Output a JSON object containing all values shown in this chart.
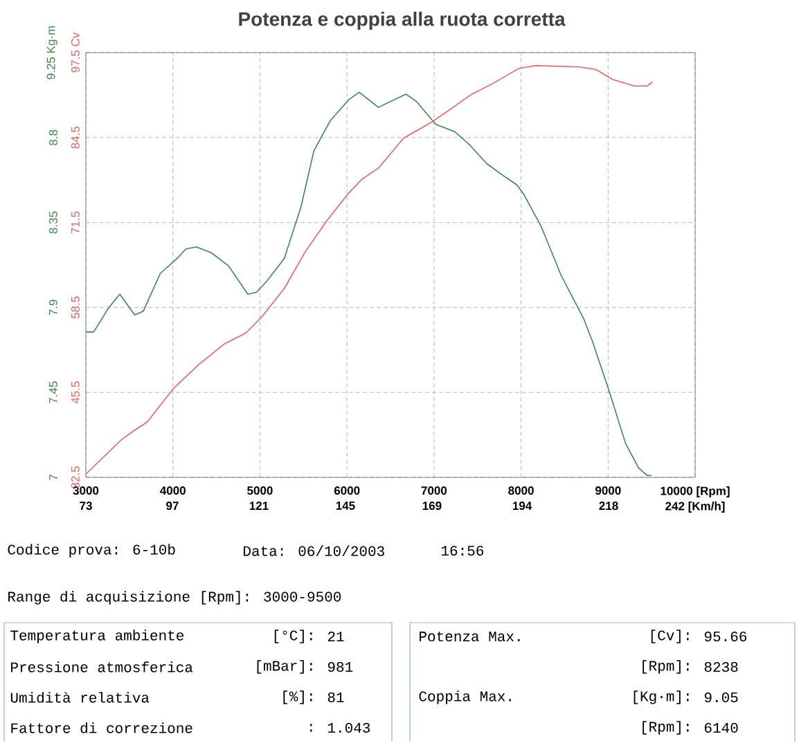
{
  "chart_data": {
    "type": "line",
    "title": "Potenza e coppia alla ruota corretta",
    "xlim": [
      3000,
      10000
    ],
    "xticks": [
      3000,
      4000,
      5000,
      6000,
      7000,
      8000,
      9000,
      {
        "value": 10000,
        "label": "10000 [Rpm]"
      }
    ],
    "x2lim": [
      73,
      242
    ],
    "x2ticks": [
      73,
      97,
      121,
      145,
      169,
      194,
      218,
      {
        "value": 242,
        "label": "242 [Km/h]"
      }
    ],
    "ylim": [
      7,
      9.25
    ],
    "yticks": [
      7,
      7.45,
      7.9,
      8.35,
      8.8,
      {
        "value": 9.25,
        "label": "9.25 Kg·m"
      }
    ],
    "y2lim": [
      32.5,
      97.5
    ],
    "y2ticks": [
      32.5,
      45.5,
      58.5,
      71.5,
      84.5,
      {
        "value": 97.5,
        "label": "97.5 Cv"
      }
    ],
    "grid": true,
    "series": [
      {
        "color": "#3a8a4a",
        "x": [
          3000,
          3090,
          3265,
          3390,
          3560,
          3660,
          3855,
          4050,
          4150,
          4270,
          4440,
          4640,
          4860,
          4960,
          5080,
          5280,
          5470,
          5620,
          5810,
          6020,
          6140,
          6360,
          6680,
          6800,
          7020,
          7240,
          7390,
          7610,
          7790,
          7950,
          8030,
          8230,
          8460,
          8720,
          8820,
          9010,
          9200,
          9350,
          9450,
          9500
        ],
        "values": [
          7.77,
          7.77,
          7.9,
          7.97,
          7.86,
          7.88,
          8.08,
          8.16,
          8.21,
          8.22,
          8.19,
          8.12,
          7.97,
          7.98,
          8.04,
          8.16,
          8.43,
          8.73,
          8.89,
          9.0,
          9.04,
          8.96,
          9.03,
          8.99,
          8.87,
          8.83,
          8.77,
          8.66,
          8.6,
          8.55,
          8.5,
          8.33,
          8.07,
          7.84,
          7.72,
          7.46,
          7.18,
          7.05,
          7.01,
          7.01
        ]
      },
      {
        "color": "#f06060",
        "axis": "y2",
        "x": [
          3000,
          3412,
          3560,
          3707,
          4000,
          4300,
          4590,
          4840,
          5030,
          5280,
          5520,
          5770,
          6020,
          6170,
          6360,
          6650,
          6990,
          7240,
          7430,
          7680,
          7980,
          8170,
          8670,
          8860,
          9050,
          9300,
          9450,
          9510
        ],
        "values": [
          33.0,
          38.3,
          39.7,
          41.0,
          46.0,
          49.8,
          52.9,
          54.6,
          57.2,
          61.4,
          67.0,
          71.8,
          76.0,
          78.1,
          79.8,
          84.4,
          87.0,
          89.3,
          91.1,
          92.8,
          95.1,
          95.5,
          95.3,
          94.9,
          93.4,
          92.4,
          92.4,
          93.0
        ]
      }
    ],
    "annotations": [
      "Codice prova: 6-10b",
      "Data: 06/10/2003",
      "16:56",
      "Range di acquisizione [Rpm]: 3000-9500",
      "Temperatura ambiente",
      "[°C]:",
      "21",
      "Pressione atmosferica",
      "[mBar]:",
      "981",
      "Umidità relativa",
      "[%]:",
      "81",
      "Fattore di correzione",
      ":",
      "1.043",
      "Potenza Max.",
      "[Cv]:",
      "95.66",
      "[Rpm]:",
      "8238",
      "Coppia Max.",
      "[Kg·m]:",
      "9.05",
      "[Rpm]:",
      "6140"
    ]
  }
}
